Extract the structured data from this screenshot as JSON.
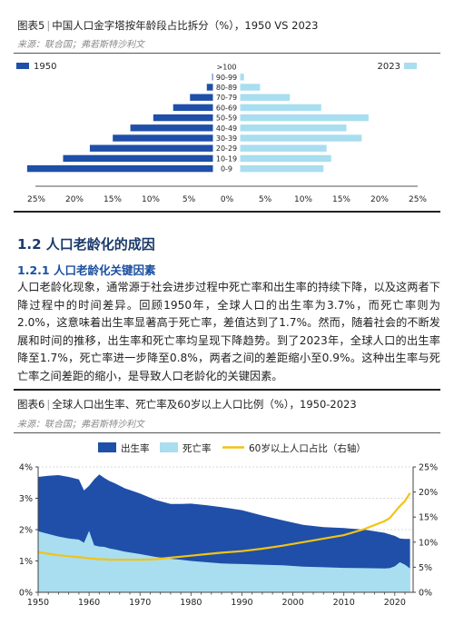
{
  "figure5": {
    "title_label": "图表5",
    "title_text": "中国人口金字塔按年龄段占比拆分（%），1950 VS 2023",
    "source": "来源：联合国；弗若斯特沙利文",
    "chart_data": {
      "type": "bar",
      "orientation": "horizontal-pyramid",
      "categories": [
        ">100",
        "90-99",
        "80-89",
        "70-79",
        "60-69",
        "50-59",
        "40-49",
        "30-39",
        "20-29",
        "10-19",
        "0-9"
      ],
      "series": [
        {
          "name": "1950",
          "color": "#1f4fa8",
          "values": [
            0,
            0.1,
            0.8,
            3.0,
            5.2,
            7.8,
            10.8,
            13.1,
            16.1,
            19.6,
            24.3
          ]
        },
        {
          "name": "2023",
          "color": "#a8def0",
          "values": [
            0,
            0.5,
            2.6,
            6.5,
            10.6,
            16.8,
            13.9,
            15.9,
            11.3,
            11.9,
            10.9
          ]
        }
      ],
      "xlim": [
        -25,
        25
      ],
      "xticks": [
        "25%",
        "20%",
        "15%",
        "10%",
        "5%",
        "0%",
        "5%",
        "10%",
        "15%",
        "20%",
        "25%"
      ],
      "legend_left": "1950",
      "legend_right": "2023"
    }
  },
  "section": {
    "h2": "1.2 人口老龄化的成因",
    "h3": "1.2.1 人口老龄化关键因素",
    "paragraph": "人口老龄化现象，通常源于社会进步过程中死亡率和出生率的持续下降，以及这两者下降过程中的时间差异。回顾1950年，全球人口的出生率为3.7%，而死亡率则为2.0%，这意味着出生率显著高于死亡率，差值达到了1.7%。然而，随着社会的不断发展和时间的推移，出生率和死亡率均呈现下降趋势。到了2023年，全球人口的出生率降至1.7%，死亡率进一步降至0.8%，两者之间的差距缩小至0.9%。这种出生率与死亡率之间差距的缩小，是导致人口老龄化的关键因素。"
  },
  "figure6": {
    "title_label": "图表6",
    "title_text": "全球人口出生率、死亡率及60岁以上人口比例（%），1950-2023",
    "source": "来源：联合国；弗若斯特沙利文",
    "chart_data": {
      "type": "area",
      "x": [
        1950,
        1952,
        1954,
        1956,
        1958,
        1959,
        1960,
        1961,
        1962,
        1963,
        1964,
        1965,
        1967,
        1970,
        1973,
        1976,
        1978,
        1980,
        1983,
        1986,
        1990,
        1994,
        1998,
        2002,
        2006,
        2010,
        2014,
        2018,
        2019,
        2020,
        2021,
        2022,
        2023
      ],
      "series": [
        {
          "name": "出生率",
          "axis": "left",
          "color": "#1f4fa8",
          "values": [
            3.68,
            3.72,
            3.74,
            3.68,
            3.6,
            3.25,
            3.4,
            3.6,
            3.76,
            3.65,
            3.55,
            3.48,
            3.32,
            3.15,
            2.95,
            2.82,
            2.82,
            2.83,
            2.78,
            2.72,
            2.62,
            2.45,
            2.3,
            2.15,
            2.08,
            2.05,
            2.0,
            1.9,
            1.85,
            1.8,
            1.72,
            1.7,
            1.7
          ]
        },
        {
          "name": "死亡率",
          "axis": "left",
          "color": "#a8def0",
          "values": [
            1.95,
            1.86,
            1.78,
            1.72,
            1.68,
            1.58,
            1.96,
            1.5,
            1.46,
            1.45,
            1.4,
            1.37,
            1.3,
            1.22,
            1.13,
            1.07,
            1.04,
            1.0,
            0.96,
            0.92,
            0.9,
            0.88,
            0.86,
            0.82,
            0.8,
            0.78,
            0.77,
            0.76,
            0.77,
            0.83,
            0.96,
            0.88,
            0.76
          ]
        },
        {
          "name": "60岁以上人口占比（右轴）",
          "axis": "right",
          "color": "#f2c314",
          "values": [
            8.0,
            7.7,
            7.4,
            7.2,
            7.0,
            6.9,
            6.8,
            6.7,
            6.6,
            6.6,
            6.5,
            6.5,
            6.5,
            6.5,
            6.6,
            6.9,
            7.1,
            7.3,
            7.6,
            7.9,
            8.2,
            8.7,
            9.3,
            10.0,
            10.7,
            11.4,
            12.6,
            14.2,
            14.8,
            16.0,
            17.2,
            18.2,
            19.8
          ]
        }
      ],
      "ylim": [
        0,
        4
      ],
      "y2lim": [
        0,
        25
      ],
      "yticks": [
        "0%",
        "1%",
        "2%",
        "3%",
        "4%"
      ],
      "y2ticks": [
        "0%",
        "5%",
        "10%",
        "15%",
        "20%",
        "25%"
      ],
      "xticks": [
        "1950",
        "1960",
        "1970",
        "1980",
        "1990",
        "2000",
        "2010",
        "2020"
      ]
    }
  }
}
